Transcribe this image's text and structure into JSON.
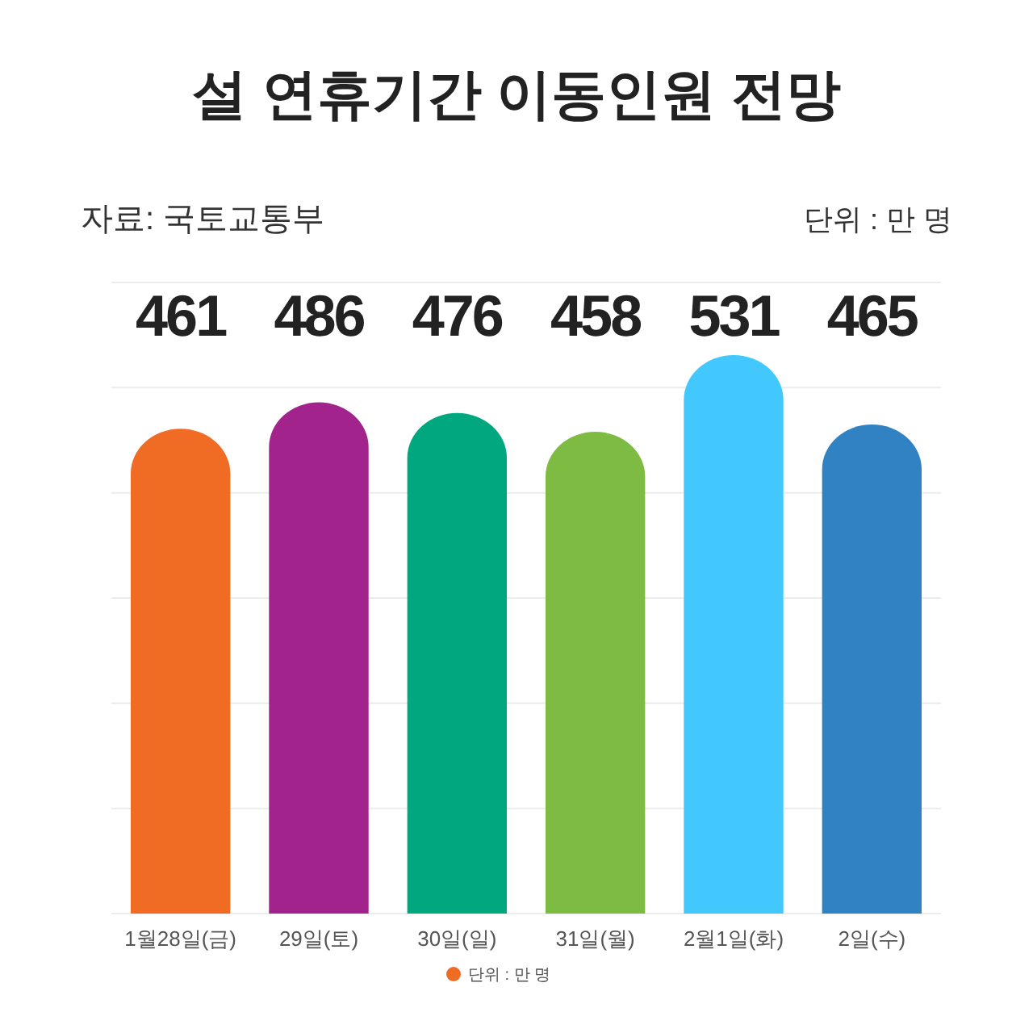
{
  "chart_data": {
    "type": "bar",
    "title": "설 연휴기간 이동인원 전망",
    "annotations": [
      "자료: 국토교통부",
      "단위 : 만 명"
    ],
    "categories": [
      "1월28일(금)",
      "29일(토)",
      "30일(일)",
      "31일(월)",
      "2월1일(화)",
      "2일(수)"
    ],
    "series": [
      {
        "name": "단위 : 만 명",
        "colors": [
          "#f06c24",
          "#a2238c",
          "#00a77f",
          "#7ebb42",
          "#43c8fd",
          "#3182c3"
        ],
        "values": [
          461,
          486,
          476,
          458,
          531,
          465
        ]
      }
    ],
    "ylim": [
      0,
      600
    ],
    "yticks": [
      {
        "value": 0,
        "label": null
      },
      {
        "value": 100,
        "label": null
      },
      {
        "value": 200,
        "label": null
      },
      {
        "value": 300,
        "label": null
      },
      {
        "value": 400,
        "label": null
      },
      {
        "value": 500,
        "label": null
      },
      {
        "value": 600,
        "label": null
      }
    ],
    "grid": "y",
    "tick_labels": "x",
    "data_labels": true,
    "legend": "bottom"
  }
}
